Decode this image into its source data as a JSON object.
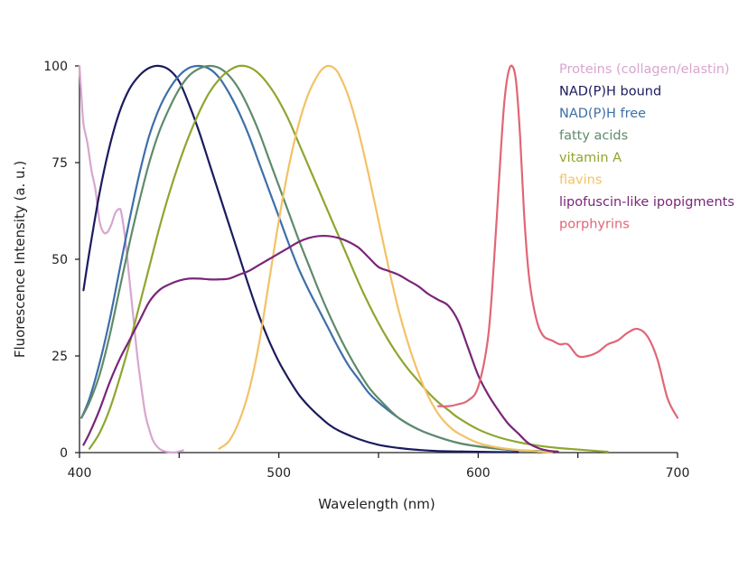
{
  "chart_data": {
    "type": "line",
    "title": "",
    "xlabel": "Wavelength (nm)",
    "ylabel": "Fluorescence Intensity (a. u.)",
    "xlim": [
      400,
      700
    ],
    "ylim": [
      0,
      100
    ],
    "x_ticks": [
      400,
      450,
      500,
      550,
      600,
      650,
      700
    ],
    "x_tick_labels": [
      "400",
      "500",
      "600",
      "700"
    ],
    "x_tick_label_values": [
      400,
      500,
      600,
      700
    ],
    "y_ticks": [
      0,
      25,
      50,
      75,
      100
    ],
    "y_tick_labels": [
      "0",
      "25",
      "50",
      "75",
      "100"
    ],
    "legend_position": "top-right",
    "series": [
      {
        "name": "Proteins (collagen/elastin)",
        "color": "#d8a6cf",
        "points": [
          [
            400,
            100
          ],
          [
            401,
            92
          ],
          [
            402,
            85
          ],
          [
            404,
            80
          ],
          [
            406,
            73
          ],
          [
            408,
            68
          ],
          [
            410,
            60
          ],
          [
            412,
            57
          ],
          [
            414,
            57
          ],
          [
            416,
            59
          ],
          [
            418,
            62
          ],
          [
            420,
            63
          ],
          [
            421,
            62
          ],
          [
            423,
            55
          ],
          [
            425,
            45
          ],
          [
            427,
            35
          ],
          [
            429,
            25
          ],
          [
            431,
            17
          ],
          [
            433,
            10
          ],
          [
            435,
            6
          ],
          [
            437,
            3
          ],
          [
            440,
            1
          ],
          [
            443,
            0.3
          ],
          [
            447,
            0
          ],
          [
            450,
            0.3
          ],
          [
            452,
            0.6
          ]
        ]
      },
      {
        "name": "NAD(P)H bound",
        "color": "#1b1b5e",
        "points": [
          [
            402,
            42
          ],
          [
            405,
            52
          ],
          [
            410,
            67
          ],
          [
            415,
            79
          ],
          [
            420,
            88
          ],
          [
            425,
            94
          ],
          [
            430,
            97.5
          ],
          [
            435,
            99.5
          ],
          [
            440,
            100
          ],
          [
            445,
            99
          ],
          [
            450,
            96
          ],
          [
            455,
            90
          ],
          [
            460,
            83
          ],
          [
            465,
            75
          ],
          [
            470,
            67
          ],
          [
            475,
            59
          ],
          [
            480,
            51
          ],
          [
            485,
            43
          ],
          [
            490,
            35.5
          ],
          [
            495,
            29
          ],
          [
            500,
            23.5
          ],
          [
            505,
            19
          ],
          [
            510,
            15
          ],
          [
            515,
            12
          ],
          [
            520,
            9.5
          ],
          [
            525,
            7.3
          ],
          [
            530,
            5.7
          ],
          [
            540,
            3.5
          ],
          [
            550,
            2
          ],
          [
            560,
            1.2
          ],
          [
            570,
            0.7
          ],
          [
            580,
            0.4
          ],
          [
            600,
            0.2
          ],
          [
            620,
            0.1
          ]
        ]
      },
      {
        "name": "NAD(P)H free",
        "color": "#3e6fa8",
        "points": [
          [
            401,
            9
          ],
          [
            405,
            14
          ],
          [
            410,
            23
          ],
          [
            415,
            34
          ],
          [
            420,
            47
          ],
          [
            425,
            60
          ],
          [
            430,
            72
          ],
          [
            435,
            82
          ],
          [
            440,
            89
          ],
          [
            445,
            94
          ],
          [
            450,
            97.5
          ],
          [
            455,
            99.5
          ],
          [
            460,
            100
          ],
          [
            465,
            99.3
          ],
          [
            470,
            97
          ],
          [
            475,
            93
          ],
          [
            480,
            88
          ],
          [
            485,
            82
          ],
          [
            490,
            75
          ],
          [
            495,
            68
          ],
          [
            500,
            61
          ],
          [
            505,
            54
          ],
          [
            510,
            47.5
          ],
          [
            515,
            42
          ],
          [
            520,
            37
          ],
          [
            525,
            32
          ],
          [
            530,
            27
          ],
          [
            535,
            22.5
          ],
          [
            540,
            19
          ],
          [
            545,
            15.5
          ],
          [
            550,
            13
          ],
          [
            560,
            9
          ],
          [
            570,
            6
          ],
          [
            580,
            4
          ],
          [
            590,
            2.5
          ],
          [
            600,
            1.6
          ],
          [
            610,
            1
          ],
          [
            620,
            0.6
          ],
          [
            630,
            0.4
          ]
        ]
      },
      {
        "name": "fatty acids",
        "color": "#5f8a6a",
        "points": [
          [
            401,
            9
          ],
          [
            405,
            13
          ],
          [
            410,
            20
          ],
          [
            415,
            30
          ],
          [
            420,
            42
          ],
          [
            425,
            54
          ],
          [
            430,
            65
          ],
          [
            435,
            75
          ],
          [
            440,
            83
          ],
          [
            445,
            89
          ],
          [
            450,
            94
          ],
          [
            455,
            97.5
          ],
          [
            460,
            99.3
          ],
          [
            465,
            100
          ],
          [
            470,
            99.5
          ],
          [
            475,
            97.5
          ],
          [
            480,
            94
          ],
          [
            485,
            89
          ],
          [
            490,
            83
          ],
          [
            495,
            76
          ],
          [
            500,
            69
          ],
          [
            505,
            62
          ],
          [
            510,
            55
          ],
          [
            515,
            48.5
          ],
          [
            520,
            42
          ],
          [
            525,
            36
          ],
          [
            530,
            30.5
          ],
          [
            535,
            25.5
          ],
          [
            540,
            21
          ],
          [
            545,
            17
          ],
          [
            550,
            14
          ],
          [
            560,
            9
          ],
          [
            570,
            6
          ],
          [
            580,
            4
          ],
          [
            590,
            2.5
          ],
          [
            600,
            1.6
          ],
          [
            610,
            1
          ],
          [
            620,
            0.6
          ],
          [
            630,
            0.4
          ],
          [
            640,
            0.3
          ]
        ]
      },
      {
        "name": "vitamin A",
        "color": "#8ea62f",
        "points": [
          [
            405,
            1
          ],
          [
            410,
            5
          ],
          [
            415,
            11
          ],
          [
            420,
            19
          ],
          [
            425,
            28
          ],
          [
            430,
            38
          ],
          [
            435,
            48
          ],
          [
            440,
            58
          ],
          [
            445,
            67
          ],
          [
            450,
            75
          ],
          [
            455,
            82
          ],
          [
            460,
            88
          ],
          [
            465,
            93
          ],
          [
            470,
            96.5
          ],
          [
            475,
            98.8
          ],
          [
            480,
            100
          ],
          [
            485,
            99.7
          ],
          [
            490,
            98
          ],
          [
            495,
            95
          ],
          [
            500,
            91
          ],
          [
            505,
            86
          ],
          [
            510,
            80
          ],
          [
            515,
            74
          ],
          [
            520,
            68
          ],
          [
            525,
            62
          ],
          [
            530,
            56
          ],
          [
            535,
            50
          ],
          [
            540,
            44
          ],
          [
            545,
            38.5
          ],
          [
            550,
            33.5
          ],
          [
            555,
            29
          ],
          [
            560,
            25
          ],
          [
            565,
            21.5
          ],
          [
            570,
            18.5
          ],
          [
            575,
            15.5
          ],
          [
            580,
            13
          ],
          [
            585,
            11
          ],
          [
            590,
            9
          ],
          [
            600,
            6
          ],
          [
            610,
            4
          ],
          [
            620,
            2.7
          ],
          [
            630,
            1.8
          ],
          [
            640,
            1.2
          ],
          [
            650,
            0.8
          ],
          [
            660,
            0.4
          ],
          [
            665,
            0.2
          ]
        ]
      },
      {
        "name": "flavins",
        "color": "#f2c266",
        "points": [
          [
            470,
            1
          ],
          [
            475,
            3
          ],
          [
            480,
            8
          ],
          [
            485,
            16
          ],
          [
            490,
            28
          ],
          [
            495,
            44
          ],
          [
            500,
            60
          ],
          [
            505,
            74
          ],
          [
            510,
            85
          ],
          [
            515,
            93
          ],
          [
            520,
            98
          ],
          [
            523,
            99.7
          ],
          [
            525,
            100
          ],
          [
            527,
            99.7
          ],
          [
            530,
            98
          ],
          [
            535,
            92
          ],
          [
            540,
            83
          ],
          [
            545,
            72
          ],
          [
            550,
            60
          ],
          [
            555,
            48
          ],
          [
            560,
            37
          ],
          [
            565,
            28
          ],
          [
            570,
            20.5
          ],
          [
            575,
            14.5
          ],
          [
            580,
            10
          ],
          [
            585,
            7
          ],
          [
            590,
            5
          ],
          [
            600,
            2.5
          ],
          [
            610,
            1.3
          ],
          [
            620,
            0.7
          ],
          [
            630,
            0.3
          ],
          [
            637,
            0.1
          ]
        ]
      },
      {
        "name": "lipofuscin-like ipopigments",
        "color": "#7a2578",
        "points": [
          [
            402,
            2
          ],
          [
            405,
            5
          ],
          [
            410,
            11
          ],
          [
            415,
            18
          ],
          [
            420,
            24
          ],
          [
            425,
            29
          ],
          [
            430,
            34
          ],
          [
            435,
            39
          ],
          [
            440,
            42
          ],
          [
            445,
            43.5
          ],
          [
            450,
            44.5
          ],
          [
            455,
            45
          ],
          [
            460,
            45
          ],
          [
            465,
            44.8
          ],
          [
            470,
            44.8
          ],
          [
            475,
            45
          ],
          [
            480,
            46
          ],
          [
            485,
            47
          ],
          [
            490,
            48.5
          ],
          [
            495,
            50
          ],
          [
            500,
            51.5
          ],
          [
            505,
            53
          ],
          [
            510,
            54.5
          ],
          [
            515,
            55.5
          ],
          [
            520,
            56
          ],
          [
            525,
            56
          ],
          [
            530,
            55.5
          ],
          [
            535,
            54.5
          ],
          [
            540,
            53
          ],
          [
            545,
            50.5
          ],
          [
            550,
            48
          ],
          [
            555,
            47
          ],
          [
            560,
            46
          ],
          [
            565,
            44.5
          ],
          [
            570,
            43
          ],
          [
            575,
            41
          ],
          [
            580,
            39.5
          ],
          [
            585,
            38
          ],
          [
            590,
            34
          ],
          [
            595,
            27
          ],
          [
            600,
            20
          ],
          [
            605,
            15
          ],
          [
            610,
            11
          ],
          [
            615,
            7.5
          ],
          [
            620,
            5
          ],
          [
            625,
            2.5
          ],
          [
            630,
            1.2
          ],
          [
            635,
            0.5
          ],
          [
            640,
            0.2
          ]
        ]
      },
      {
        "name": "porphyrins",
        "color": "#e06677",
        "points": [
          [
            580,
            12
          ],
          [
            585,
            12
          ],
          [
            590,
            12.5
          ],
          [
            595,
            13.5
          ],
          [
            600,
            17
          ],
          [
            605,
            30
          ],
          [
            608,
            50
          ],
          [
            611,
            75
          ],
          [
            613,
            90
          ],
          [
            615,
            98
          ],
          [
            617,
            100
          ],
          [
            619,
            96
          ],
          [
            621,
            82
          ],
          [
            623,
            62
          ],
          [
            625,
            48
          ],
          [
            627,
            40
          ],
          [
            630,
            33
          ],
          [
            633,
            30
          ],
          [
            637,
            29
          ],
          [
            641,
            28
          ],
          [
            645,
            28
          ],
          [
            650,
            25
          ],
          [
            655,
            25
          ],
          [
            660,
            26
          ],
          [
            665,
            28
          ],
          [
            670,
            29
          ],
          [
            675,
            31
          ],
          [
            680,
            32
          ],
          [
            685,
            30
          ],
          [
            690,
            24
          ],
          [
            695,
            14
          ],
          [
            700,
            9
          ]
        ]
      }
    ]
  }
}
